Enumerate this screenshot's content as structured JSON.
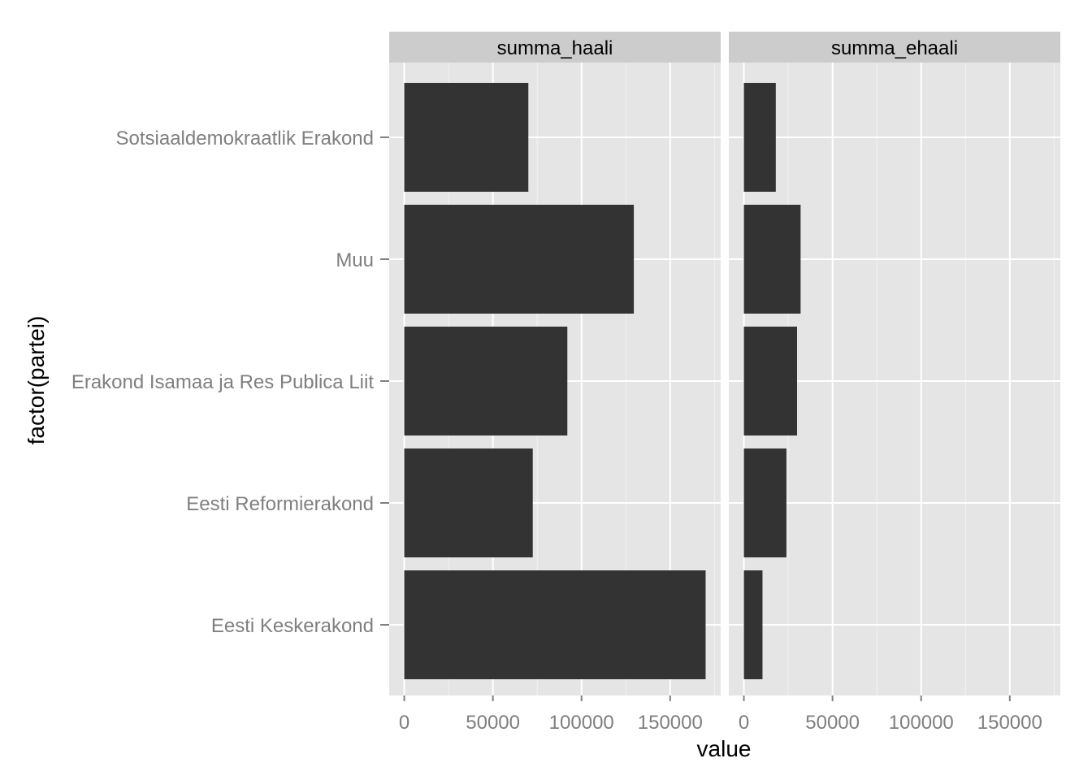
{
  "chart_data": {
    "type": "bar",
    "orientation": "horizontal",
    "xlabel": "value",
    "ylabel": "factor(partei)",
    "categories": [
      "Eesti Keskerakond",
      "Eesti Reformierakond",
      "Erakond Isamaa ja Res Publica Liit",
      "Muu",
      "Sotsiaaldemokraatlik Erakond"
    ],
    "facets": [
      {
        "name": "summa_haali",
        "values": [
          170000,
          72500,
          92000,
          129500,
          70000
        ]
      },
      {
        "name": "summa_ehaali",
        "values": [
          10500,
          24000,
          30000,
          32000,
          18000
        ]
      }
    ],
    "xlim": [
      -8500,
      178500
    ],
    "x_ticks": [
      0,
      50000,
      100000,
      150000
    ],
    "x_tick_labels": [
      "0",
      "50000",
      "100000",
      "150000"
    ],
    "grid": true,
    "colors": {
      "bar": "#333333",
      "panel": "#e5e5e5",
      "strip": "#cccccc",
      "grid_major": "#ffffff",
      "grid_minor": "#f2f2f2",
      "tick_label": "#7f7f7f"
    }
  }
}
